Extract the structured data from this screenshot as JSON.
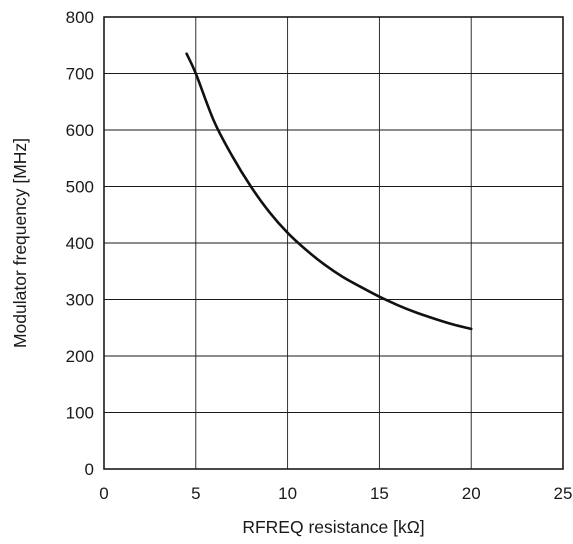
{
  "chart_data": {
    "type": "line",
    "xlabel": "RFREQ resistance [kΩ]",
    "ylabel": "Modulator frequency [MHz]",
    "xlim": [
      0,
      25
    ],
    "ylim": [
      0,
      800
    ],
    "x_ticks": [
      0,
      5,
      10,
      15,
      20,
      25
    ],
    "y_ticks": [
      0,
      100,
      200,
      300,
      400,
      500,
      600,
      700,
      800
    ],
    "x_tick_labels": [
      "0",
      "5",
      "10",
      "15",
      "20",
      "25"
    ],
    "y_tick_labels": [
      "0",
      "100",
      "200",
      "300",
      "400",
      "500",
      "600",
      "700",
      "800"
    ],
    "grid": true,
    "series": [
      {
        "color": "#111111",
        "x": [
          4.5,
          5,
          6,
          7,
          8,
          9,
          10,
          11,
          12,
          13,
          14,
          15,
          16,
          17,
          18,
          19,
          20
        ],
        "y": [
          735,
          700,
          615,
          553,
          500,
          455,
          418,
          388,
          362,
          340,
          322,
          305,
          290,
          277,
          266,
          256,
          248
        ]
      }
    ]
  }
}
